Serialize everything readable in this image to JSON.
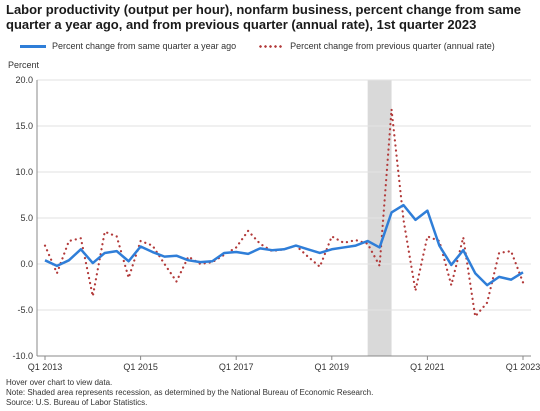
{
  "title": "Labor productivity (output per hour), nonfarm business, percent change from same quarter a year ago, and from previous quarter (annual rate), 1st quarter 2023",
  "notes": {
    "hover": "Hover over chart to view data.",
    "note": "Note: Shaded area represents recession, as determined by the National Bureau of Economic Research.",
    "source": "Source: U.S. Bureau of Labor Statistics."
  },
  "chart_data": {
    "type": "line",
    "title": "Labor productivity (output per hour), nonfarm business, percent change from same quarter a year ago, and from previous quarter (annual rate), 1st quarter 2023",
    "ylabel": "Percent",
    "ylim": [
      -10.0,
      20.0
    ],
    "yticks": [
      "20.0",
      "15.0",
      "10.0",
      "5.0",
      "0.0",
      "-5.0",
      "-10.0"
    ],
    "ytick_values": [
      20,
      15,
      10,
      5,
      0,
      -5,
      -10
    ],
    "xtick_labels": [
      "Q1 2013",
      "Q1 2015",
      "Q1 2017",
      "Q1 2019",
      "Q1 2021",
      "Q1 2023"
    ],
    "xtick_index": [
      0,
      8,
      16,
      24,
      32,
      40
    ],
    "x": [
      "Q1 2013",
      "Q2 2013",
      "Q3 2013",
      "Q4 2013",
      "Q1 2014",
      "Q2 2014",
      "Q3 2014",
      "Q4 2014",
      "Q1 2015",
      "Q2 2015",
      "Q3 2015",
      "Q4 2015",
      "Q1 2016",
      "Q2 2016",
      "Q3 2016",
      "Q4 2016",
      "Q1 2017",
      "Q2 2017",
      "Q3 2017",
      "Q4 2017",
      "Q1 2018",
      "Q2 2018",
      "Q3 2018",
      "Q4 2018",
      "Q1 2019",
      "Q2 2019",
      "Q3 2019",
      "Q4 2019",
      "Q1 2020",
      "Q2 2020",
      "Q3 2020",
      "Q4 2020",
      "Q1 2021",
      "Q2 2021",
      "Q3 2021",
      "Q4 2021",
      "Q1 2022",
      "Q2 2022",
      "Q3 2022",
      "Q4 2022",
      "Q1 2023"
    ],
    "recession": {
      "start": "Q4 2019",
      "end": "Q2 2020"
    },
    "grid": true,
    "legend": "top",
    "series": [
      {
        "name": "Percent change from same quarter a year ago",
        "style": "solid",
        "color": "#2f7ed8",
        "values": [
          0.4,
          -0.2,
          0.4,
          1.6,
          0.1,
          1.2,
          1.4,
          0.3,
          1.9,
          1.3,
          0.8,
          0.9,
          0.4,
          0.2,
          0.3,
          1.2,
          1.3,
          1.1,
          1.7,
          1.5,
          1.6,
          2.0,
          1.6,
          1.2,
          1.6,
          1.8,
          2.0,
          2.5,
          1.8,
          5.6,
          6.4,
          4.8,
          5.8,
          2.0,
          -0.1,
          1.5,
          -1.0,
          -2.3,
          -1.4,
          -1.7,
          -0.9
        ]
      },
      {
        "name": "Percent change from previous quarter (annual rate)",
        "style": "dotted",
        "color": "#b23a3a",
        "values": [
          2.0,
          -1.0,
          2.5,
          2.8,
          -3.5,
          3.5,
          3.0,
          -1.5,
          2.5,
          2.0,
          0.0,
          -1.9,
          0.8,
          0.0,
          0.2,
          1.0,
          1.8,
          3.6,
          2.2,
          1.4,
          1.6,
          2.0,
          0.8,
          -0.3,
          3.0,
          2.3,
          2.6,
          2.2,
          -0.2,
          16.8,
          4.8,
          -2.9,
          3.0,
          2.5,
          -2.3,
          2.9,
          -5.7,
          -4.2,
          1.2,
          1.4,
          -2.0
        ]
      }
    ]
  }
}
